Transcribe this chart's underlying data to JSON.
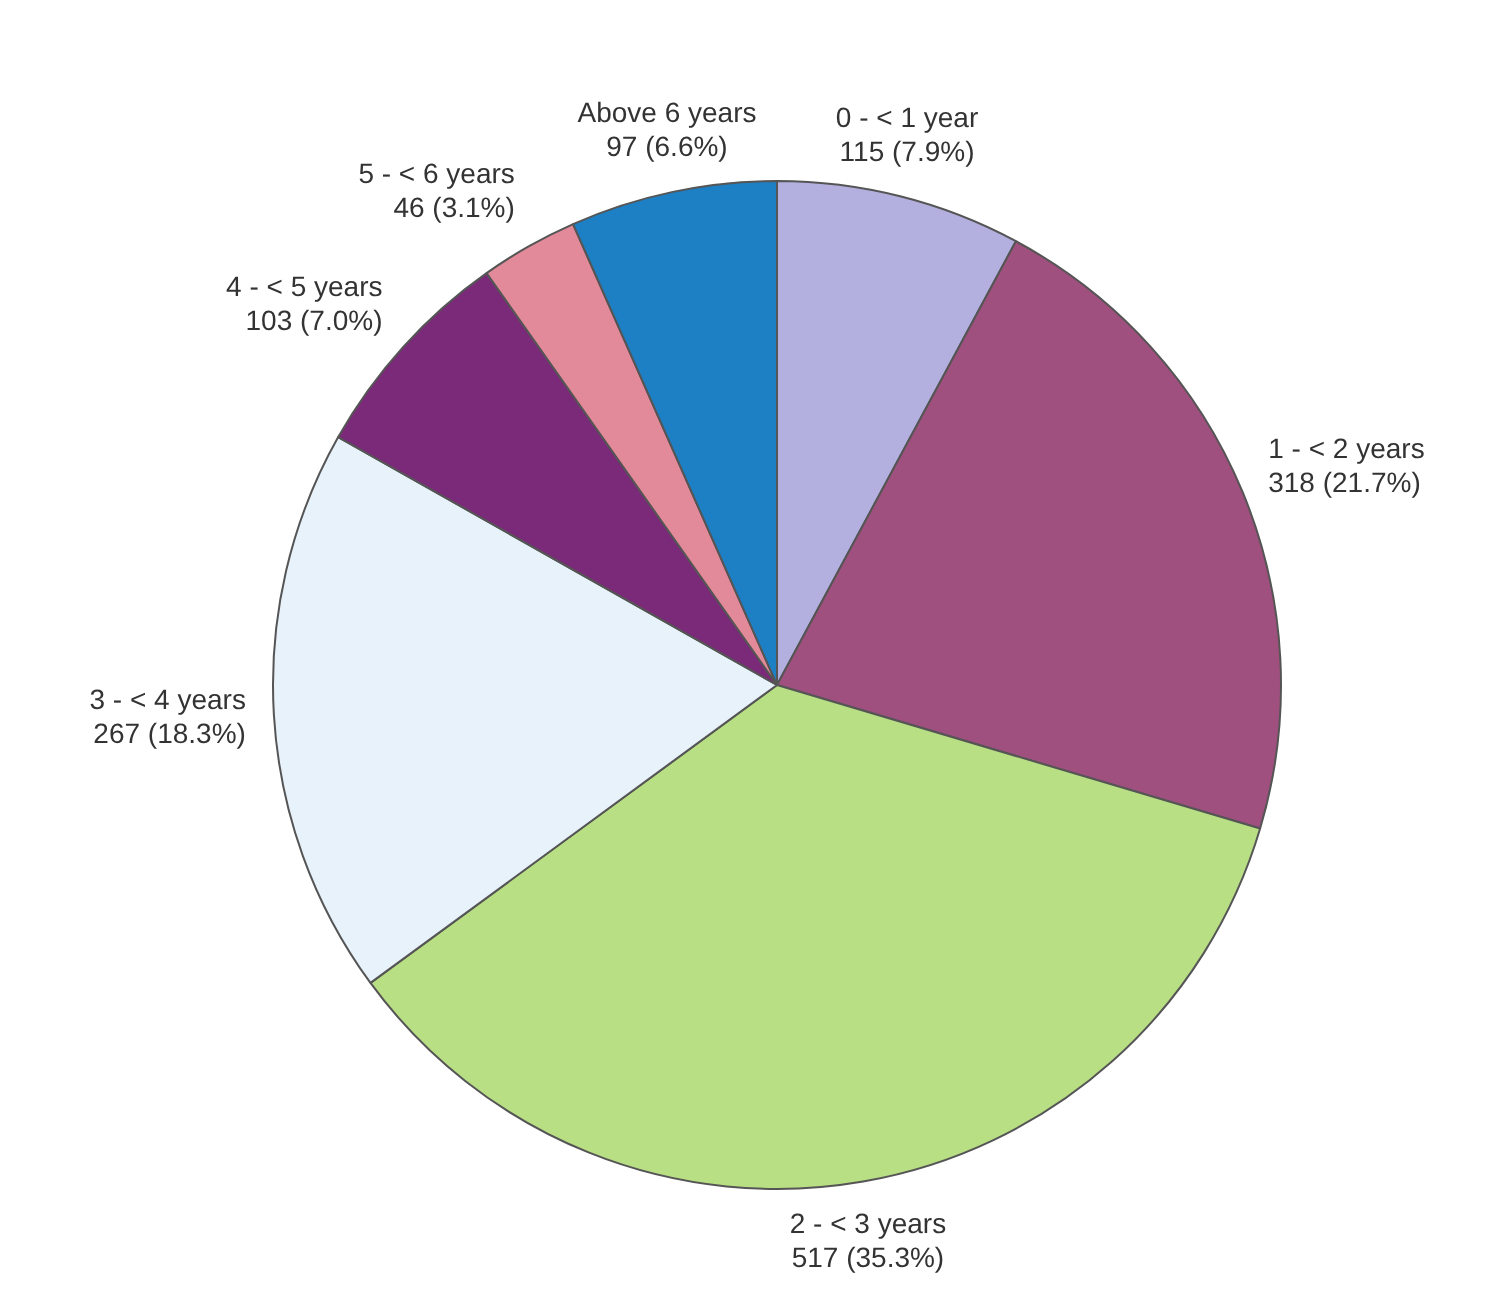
{
  "chart_data": {
    "type": "pie",
    "categories": [
      "0 - < 1 year",
      "1 - < 2 years",
      "2 - < 3 years",
      "3 - < 4 years",
      "4 - < 5 years",
      "5 - < 6 years",
      "Above 6 years"
    ],
    "values": [
      115,
      318,
      517,
      267,
      103,
      46,
      97
    ],
    "value_labels": [
      "115 (7.9%)",
      "318 (21.7%)",
      "517 (35.3%)",
      "267 (18.3%)",
      "103 (7.0%)",
      "46 (3.1%)",
      "97 (6.6%)"
    ],
    "colors": [
      "#b3b0e0",
      "#a0507e",
      "#b9df85",
      "#e8f2fb",
      "#7a2a78",
      "#e28a9a",
      "#1d7fc4"
    ],
    "legend": false
  }
}
